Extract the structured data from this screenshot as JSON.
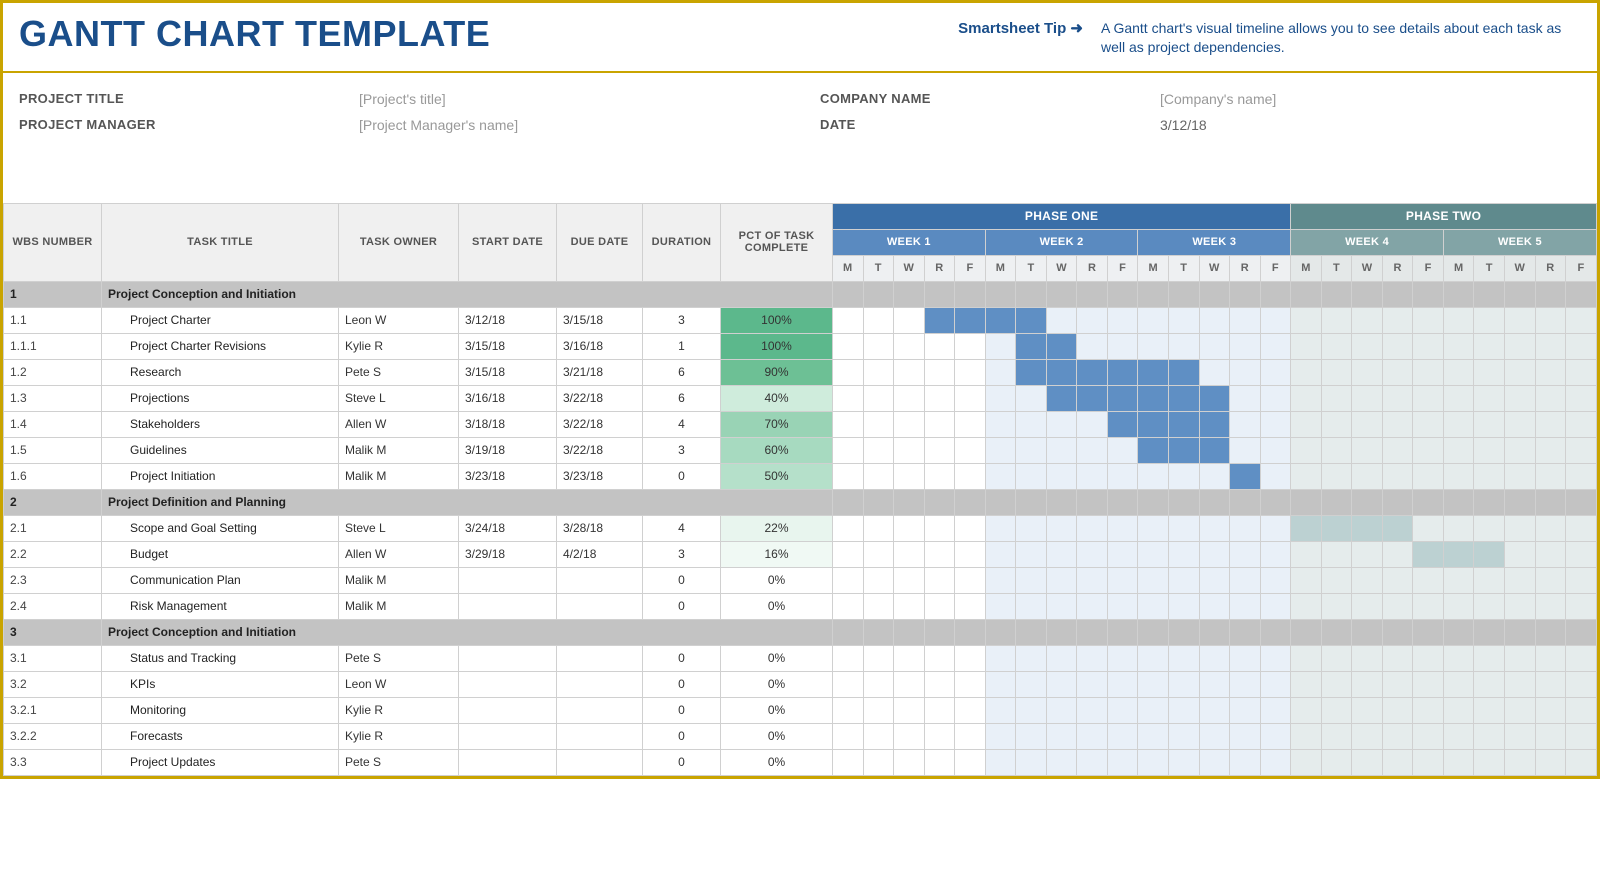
{
  "header": {
    "title": "GANTT CHART TEMPLATE",
    "tip_link": "Smartsheet Tip ➜",
    "tip_text": "A Gantt chart's visual timeline allows you to see details about each task as well as project dependencies."
  },
  "meta": {
    "project_title_label": "PROJECT TITLE",
    "project_title_value": "[Project's title]",
    "project_manager_label": "PROJECT MANAGER",
    "project_manager_value": "[Project Manager's name]",
    "company_label": "COMPANY NAME",
    "company_value": "[Company's name]",
    "date_label": "DATE",
    "date_value": "3/12/18"
  },
  "columns": {
    "wbs": "WBS NUMBER",
    "task": "TASK TITLE",
    "owner": "TASK OWNER",
    "start": "START DATE",
    "due": "DUE DATE",
    "duration": "DURATION",
    "pct": "PCT OF TASK COMPLETE"
  },
  "timeline": {
    "phases": [
      {
        "label": "PHASE ONE",
        "weeks": 3,
        "class": "phase1",
        "week_class": "week-p1",
        "day_class": "day-p1",
        "shade_class": "p1-shade",
        "bg": "#3a6fa8",
        "week_bg": "#5a8ac0"
      },
      {
        "label": "PHASE TWO",
        "weeks": 2,
        "class": "phase2",
        "week_class": "week-p2",
        "day_class": "day-p2",
        "shade_class": "p2-shade",
        "bg": "#5f8a8d",
        "week_bg": "#82a4a6"
      }
    ],
    "weeks": [
      "WEEK 1",
      "WEEK 2",
      "WEEK 3",
      "WEEK 4",
      "WEEK 5"
    ],
    "days": [
      "M",
      "T",
      "W",
      "R",
      "F"
    ],
    "days_per_week": 5,
    "total_days": 25,
    "shade_start_col": 6,
    "shade_end_col": 25,
    "colors": {
      "bar_dark": "#5f8fc4",
      "bar_mid": "#8fb2d8",
      "bar_teal": "#bcd1d2",
      "p1_shade": "#e9f0f8",
      "p2_shade": "#e5ecec",
      "section_bg": "#c3c3c3"
    }
  },
  "pct_colors": {
    "100": "#5cb88c",
    "90": "#6dc095",
    "70": "#99d3b5",
    "60": "#a7dac0",
    "50": "#b5e0ca",
    "40": "#cfecdc",
    "22": "#e8f5ee",
    "16": "#f0f9f4",
    "0": "#ffffff"
  },
  "rows": [
    {
      "type": "section",
      "wbs": "1",
      "task": "Project Conception and Initiation"
    },
    {
      "type": "task",
      "wbs": "1.1",
      "task": "Project Charter",
      "owner": "Leon W",
      "start": "3/12/18",
      "due": "3/15/18",
      "duration": "3",
      "pct": "100%",
      "pct_key": "100",
      "bars": [
        {
          "from": 4,
          "to": 7,
          "style": "bar-dark"
        }
      ]
    },
    {
      "type": "task",
      "wbs": "1.1.1",
      "task": "Project Charter Revisions",
      "owner": "Kylie R",
      "start": "3/15/18",
      "due": "3/16/18",
      "duration": "1",
      "pct": "100%",
      "pct_key": "100",
      "bars": [
        {
          "from": 7,
          "to": 8,
          "style": "bar-dark"
        }
      ]
    },
    {
      "type": "task",
      "wbs": "1.2",
      "task": "Research",
      "owner": "Pete S",
      "start": "3/15/18",
      "due": "3/21/18",
      "duration": "6",
      "pct": "90%",
      "pct_key": "90",
      "bars": [
        {
          "from": 7,
          "to": 12,
          "style": "bar-dark"
        }
      ]
    },
    {
      "type": "task",
      "wbs": "1.3",
      "task": "Projections",
      "owner": "Steve L",
      "start": "3/16/18",
      "due": "3/22/18",
      "duration": "6",
      "pct": "40%",
      "pct_key": "40",
      "bars": [
        {
          "from": 8,
          "to": 13,
          "style": "bar-dark"
        }
      ]
    },
    {
      "type": "task",
      "wbs": "1.4",
      "task": "Stakeholders",
      "owner": "Allen W",
      "start": "3/18/18",
      "due": "3/22/18",
      "duration": "4",
      "pct": "70%",
      "pct_key": "70",
      "bars": [
        {
          "from": 10,
          "to": 13,
          "style": "bar-dark"
        }
      ]
    },
    {
      "type": "task",
      "wbs": "1.5",
      "task": "Guidelines",
      "owner": "Malik M",
      "start": "3/19/18",
      "due": "3/22/18",
      "duration": "3",
      "pct": "60%",
      "pct_key": "60",
      "bars": [
        {
          "from": 11,
          "to": 13,
          "style": "bar-dark"
        }
      ]
    },
    {
      "type": "task",
      "wbs": "1.6",
      "task": "Project Initiation",
      "owner": "Malik M",
      "start": "3/23/18",
      "due": "3/23/18",
      "duration": "0",
      "pct": "50%",
      "pct_key": "50",
      "bars": [
        {
          "from": 14,
          "to": 14,
          "style": "bar-dark"
        }
      ]
    },
    {
      "type": "section",
      "wbs": "2",
      "task": "Project Definition and Planning"
    },
    {
      "type": "task",
      "wbs": "2.1",
      "task": "Scope and Goal Setting",
      "owner": "Steve L",
      "start": "3/24/18",
      "due": "3/28/18",
      "duration": "4",
      "pct": "22%",
      "pct_key": "22",
      "bars": [
        {
          "from": 16,
          "to": 19,
          "style": "bar-teal"
        }
      ]
    },
    {
      "type": "task",
      "wbs": "2.2",
      "task": "Budget",
      "owner": "Allen W",
      "start": "3/29/18",
      "due": "4/2/18",
      "duration": "3",
      "pct": "16%",
      "pct_key": "16",
      "bars": [
        {
          "from": 20,
          "to": 22,
          "style": "bar-teal"
        }
      ]
    },
    {
      "type": "task",
      "wbs": "2.3",
      "task": "Communication Plan",
      "owner": "Malik M",
      "start": "",
      "due": "",
      "duration": "0",
      "pct": "0%",
      "pct_key": "0",
      "bars": []
    },
    {
      "type": "task",
      "wbs": "2.4",
      "task": "Risk Management",
      "owner": "Malik M",
      "start": "",
      "due": "",
      "duration": "0",
      "pct": "0%",
      "pct_key": "0",
      "bars": []
    },
    {
      "type": "section",
      "wbs": "3",
      "task": "Project Conception and Initiation"
    },
    {
      "type": "task",
      "wbs": "3.1",
      "task": "Status and Tracking",
      "owner": "Pete S",
      "start": "",
      "due": "",
      "duration": "0",
      "pct": "0%",
      "pct_key": "0",
      "bars": []
    },
    {
      "type": "task",
      "wbs": "3.2",
      "task": "KPIs",
      "owner": "Leon W",
      "start": "",
      "due": "",
      "duration": "0",
      "pct": "0%",
      "pct_key": "0",
      "bars": []
    },
    {
      "type": "task",
      "wbs": "3.2.1",
      "task": "Monitoring",
      "owner": "Kylie R",
      "start": "",
      "due": "",
      "duration": "0",
      "pct": "0%",
      "pct_key": "0",
      "bars": []
    },
    {
      "type": "task",
      "wbs": "3.2.2",
      "task": "Forecasts",
      "owner": "Kylie R",
      "start": "",
      "due": "",
      "duration": "0",
      "pct": "0%",
      "pct_key": "0",
      "bars": []
    },
    {
      "type": "task",
      "wbs": "3.3",
      "task": "Project Updates",
      "owner": "Pete S",
      "start": "",
      "due": "",
      "duration": "0",
      "pct": "0%",
      "pct_key": "0",
      "bars": []
    }
  ]
}
